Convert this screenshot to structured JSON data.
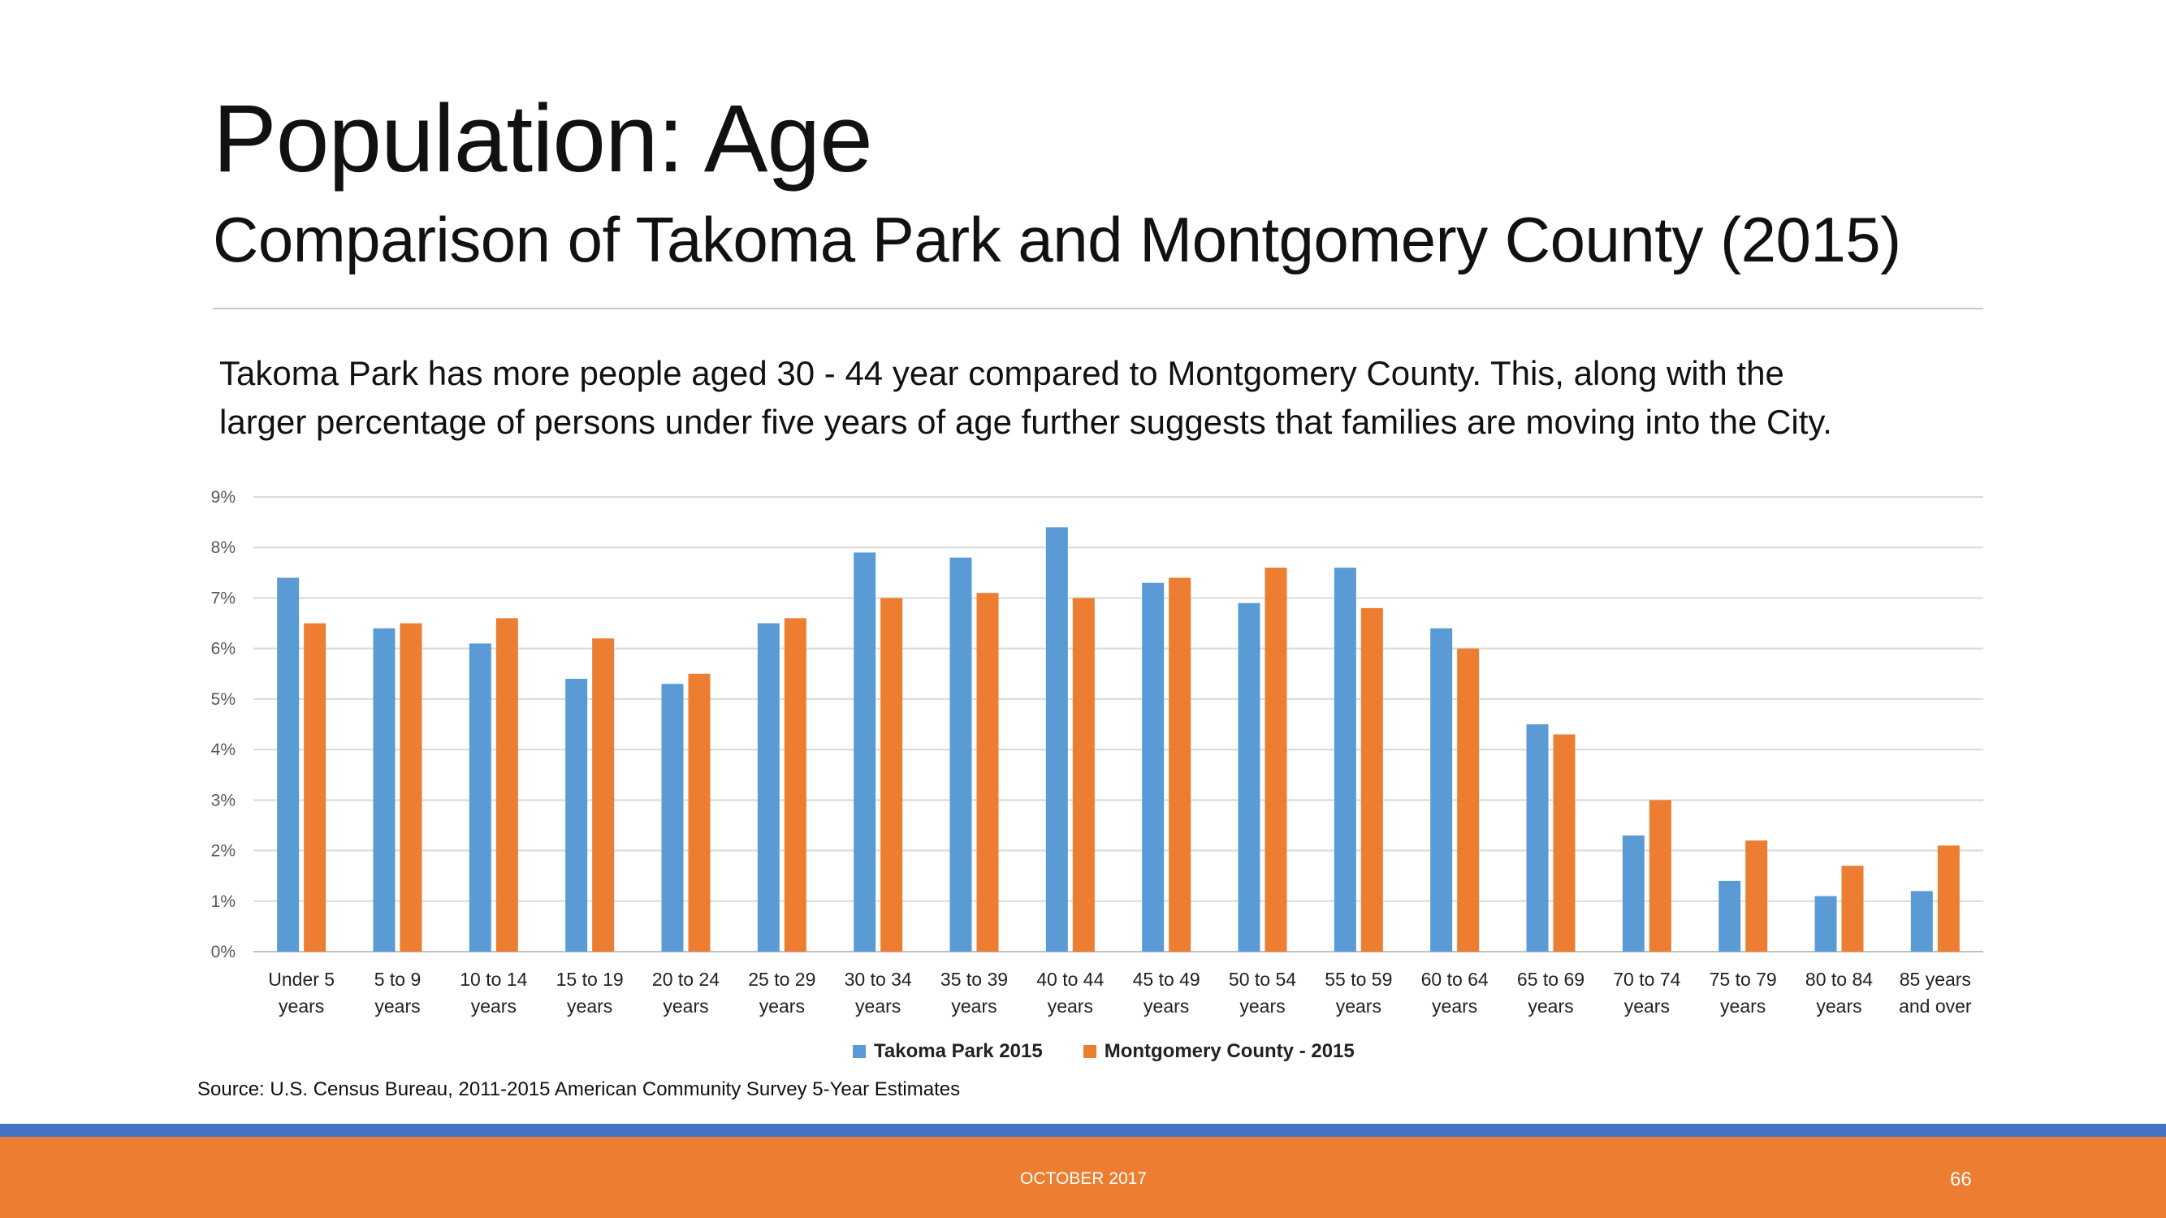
{
  "slide": {
    "title": "Population: Age",
    "subtitle": "Comparison of Takoma Park and Montgomery County (2015)",
    "body_line1": "Takoma Park has more people aged 30 - 44 year compared to Montgomery County. This, along with the",
    "body_line2": "larger percentage of persons under five years of age further suggests that families are moving into the City.",
    "source": "Source: U.S. Census Bureau, 2011-2015 American Community Survey 5-Year Estimates",
    "footer_date": "OCTOBER 2017",
    "page_number": "66"
  },
  "colors": {
    "takoma": "#5b9bd5",
    "montgomery": "#ed7d31",
    "footer_blue": "#4472c4",
    "footer_orange": "#ed7d31"
  },
  "chart_data": {
    "type": "bar",
    "categories": [
      [
        "Under 5",
        "years"
      ],
      [
        "5 to 9",
        "years"
      ],
      [
        "10 to 14",
        "years"
      ],
      [
        "15 to 19",
        "years"
      ],
      [
        "20 to 24",
        "years"
      ],
      [
        "25 to 29",
        "years"
      ],
      [
        "30 to 34",
        "years"
      ],
      [
        "35 to 39",
        "years"
      ],
      [
        "40 to 44",
        "years"
      ],
      [
        "45 to 49",
        "years"
      ],
      [
        "50 to 54",
        "years"
      ],
      [
        "55 to 59",
        "years"
      ],
      [
        "60 to 64",
        "years"
      ],
      [
        "65 to 69",
        "years"
      ],
      [
        "70 to 74",
        "years"
      ],
      [
        "75 to 79",
        "years"
      ],
      [
        "80 to 84",
        "years"
      ],
      [
        "85 years",
        "and over"
      ]
    ],
    "series": [
      {
        "name": "Takoma Park 2015",
        "color": "#5b9bd5",
        "values": [
          7.4,
          6.4,
          6.1,
          5.4,
          5.3,
          6.5,
          7.9,
          7.8,
          8.4,
          7.3,
          6.9,
          7.6,
          6.4,
          4.5,
          2.3,
          1.4,
          1.1,
          1.2
        ]
      },
      {
        "name": "Montgomery County - 2015",
        "color": "#ed7d31",
        "values": [
          6.5,
          6.5,
          6.6,
          6.2,
          5.5,
          6.6,
          7.0,
          7.1,
          7.0,
          7.4,
          7.6,
          6.8,
          6.0,
          4.3,
          3.0,
          2.2,
          1.7,
          2.1
        ]
      }
    ],
    "y_ticks": [
      "0%",
      "1%",
      "2%",
      "3%",
      "4%",
      "5%",
      "6%",
      "7%",
      "8%",
      "9%"
    ],
    "ylim": [
      0,
      9
    ],
    "y_unit": "%",
    "grid": true,
    "legend_position": "bottom"
  }
}
